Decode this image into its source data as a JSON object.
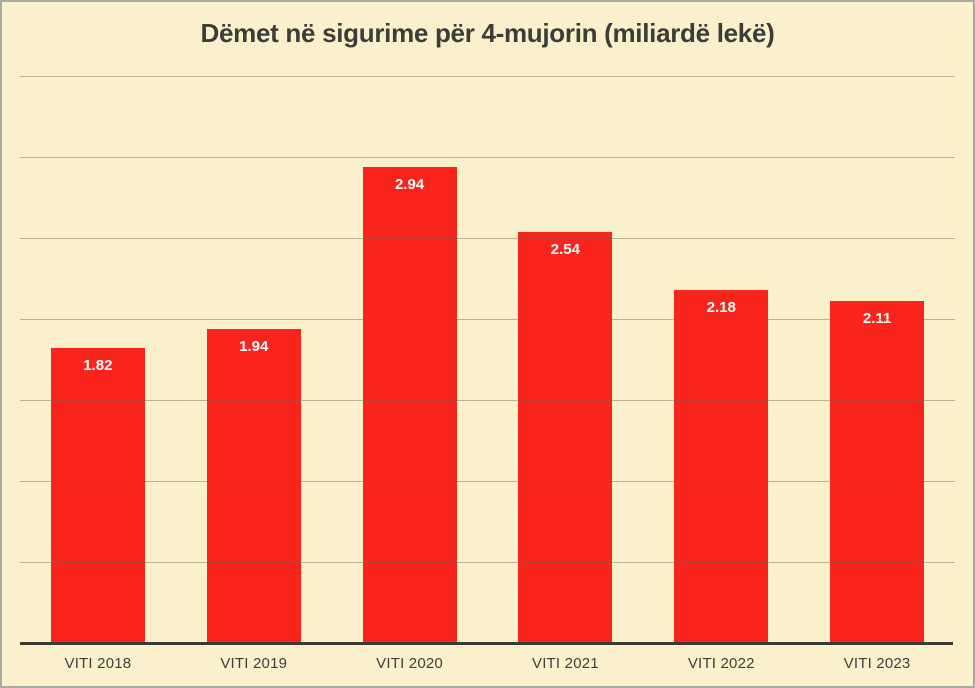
{
  "chart_data": {
    "type": "bar",
    "title": "Dëmet në sigurime për 4-mujorin (miliardë lekë)",
    "categories": [
      "VITI 2018",
      "VITI 2019",
      "VITI 2020",
      "VITI 2021",
      "VITI 2022",
      "VITI 2023"
    ],
    "values": [
      1.82,
      1.94,
      2.94,
      2.54,
      2.18,
      2.11
    ],
    "value_labels": [
      "1.82",
      "1.94",
      "2.94",
      "2.54",
      "2.18",
      "2.11"
    ],
    "xlabel": "",
    "ylabel": "",
    "ylim": [
      0,
      3.5
    ],
    "gridline_step": 0.5,
    "grid": true,
    "legend": false,
    "y_tick_labels_visible": false,
    "colors": {
      "background": "#FBF0CC",
      "bar": "#F9241C",
      "bar_label": "#FFFFFF",
      "title": "#3C3C3A",
      "tick_label": "#3F3E3B",
      "axis_line": "#3B3A35",
      "gridline": "rgba(110,100,75,0.45)",
      "border": "#A9A9A9"
    }
  }
}
